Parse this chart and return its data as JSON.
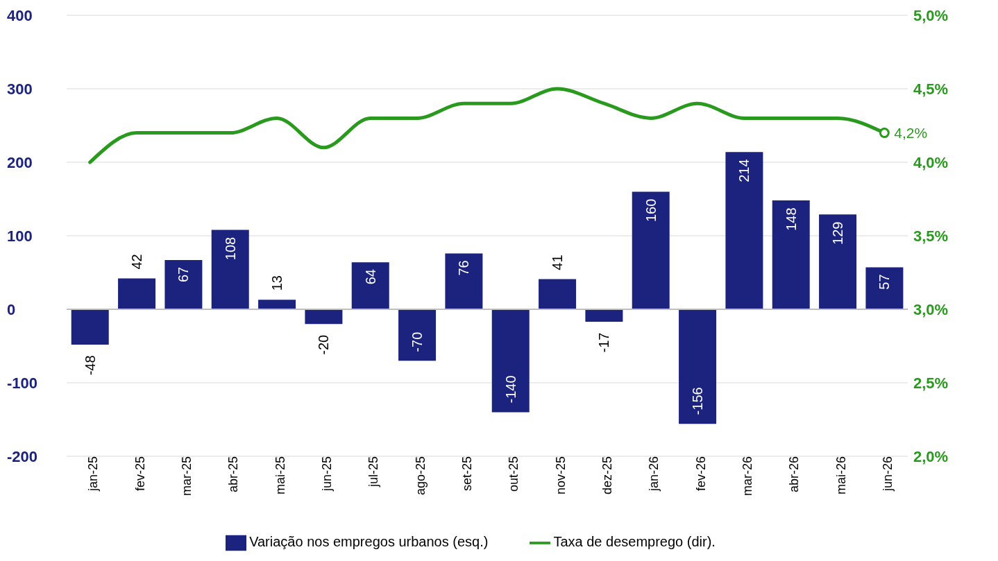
{
  "chart_data": {
    "type": "bar",
    "categories": [
      "jan-25",
      "fev-25",
      "mar-25",
      "abr-25",
      "mai-25",
      "jun-25",
      "jul-25",
      "ago-25",
      "set-25",
      "out-25",
      "nov-25",
      "dez-25",
      "jan-26",
      "fev-26",
      "mar-26",
      "abr-26",
      "mai-26",
      "jun-26"
    ],
    "series": [
      {
        "name": "Variação nos empregos urbanos (esq.)",
        "color": "#1b237e",
        "values": [
          -48,
          42,
          67,
          108,
          13,
          -20,
          64,
          -70,
          76,
          -140,
          41,
          -17,
          160,
          -156,
          214,
          148,
          129,
          57
        ]
      },
      {
        "name": "Taxa de desemprego (dir).",
        "type": "line",
        "axis": "y2",
        "color": "#2a9a1e",
        "values": [
          4.0,
          4.2,
          4.2,
          4.2,
          4.3,
          4.1,
          4.3,
          4.3,
          4.4,
          4.4,
          4.5,
          4.4,
          4.3,
          4.4,
          4.3,
          4.3,
          4.3,
          4.2
        ],
        "value_labels": [
          null,
          null,
          null,
          null,
          null,
          null,
          null,
          null,
          null,
          null,
          null,
          null,
          null,
          null,
          null,
          null,
          null,
          "4,2%"
        ]
      }
    ],
    "data_labels": true,
    "ylim": [
      -200,
      400
    ],
    "yticks": [
      -200,
      -100,
      0,
      100,
      200,
      300,
      400
    ],
    "y2lim": [
      2.0,
      5.0
    ],
    "y2ticks": [
      {
        "value": 2.0,
        "label": "2,0%"
      },
      {
        "value": 2.5,
        "label": "2,5%"
      },
      {
        "value": 3.0,
        "label": "3,0%"
      },
      {
        "value": 3.5,
        "label": "3,5%"
      },
      {
        "value": 4.0,
        "label": "4,0%"
      },
      {
        "value": 4.5,
        "label": "4,5%"
      },
      {
        "value": 5.0,
        "label": "5,0%"
      }
    ],
    "ref_lines": [
      {
        "axis": "y",
        "value": 0,
        "color": "#bfbfbf"
      }
    ],
    "grid": "y",
    "legend": "bottom",
    "marker": "none",
    "line_style": "solid"
  }
}
